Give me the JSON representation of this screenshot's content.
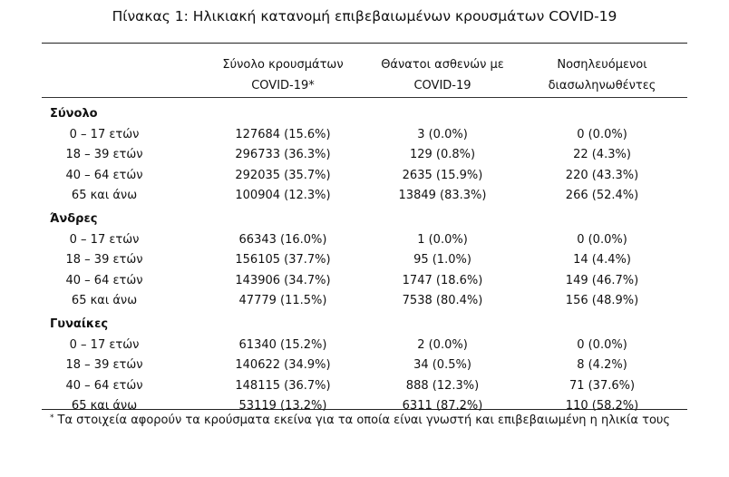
{
  "title": "Πίνακας 1: Ηλικιακή κατανομή επιβεβαιωμένων κρουσμάτων COVID-19",
  "columns": [
    "Σύνολο κρουσμάτων\nCOVID-19*",
    "Θάνατοι ασθενών με\nCOVID-19",
    "Νοσηλευόμενοι\nδιασωληνωθέντες"
  ],
  "sections": [
    {
      "label": "Σύνολο",
      "rows": [
        {
          "age": "0 – 17 ετών",
          "cases": "127684 (15.6%)",
          "deaths": "3 (0.0%)",
          "intubated": "0 (0.0%)"
        },
        {
          "age": "18 – 39 ετών",
          "cases": "296733 (36.3%)",
          "deaths": "129 (0.8%)",
          "intubated": "22 (4.3%)"
        },
        {
          "age": "40 – 64 ετών",
          "cases": "292035 (35.7%)",
          "deaths": "2635 (15.9%)",
          "intubated": "220 (43.3%)"
        },
        {
          "age": "65 και άνω",
          "cases": "100904 (12.3%)",
          "deaths": "13849 (83.3%)",
          "intubated": "266 (52.4%)"
        }
      ]
    },
    {
      "label": "Άνδρες",
      "rows": [
        {
          "age": "0 – 17 ετών",
          "cases": "66343 (16.0%)",
          "deaths": "1 (0.0%)",
          "intubated": "0 (0.0%)"
        },
        {
          "age": "18 – 39 ετών",
          "cases": "156105 (37.7%)",
          "deaths": "95 (1.0%)",
          "intubated": "14 (4.4%)"
        },
        {
          "age": "40 – 64 ετών",
          "cases": "143906 (34.7%)",
          "deaths": "1747 (18.6%)",
          "intubated": "149 (46.7%)"
        },
        {
          "age": "65 και άνω",
          "cases": "47779 (11.5%)",
          "deaths": "7538 (80.4%)",
          "intubated": "156 (48.9%)"
        }
      ]
    },
    {
      "label": "Γυναίκες",
      "rows": [
        {
          "age": "0 – 17 ετών",
          "cases": "61340 (15.2%)",
          "deaths": "2 (0.0%)",
          "intubated": "0 (0.0%)"
        },
        {
          "age": "18 – 39 ετών",
          "cases": "140622 (34.9%)",
          "deaths": "34 (0.5%)",
          "intubated": "8 (4.2%)"
        },
        {
          "age": "40 – 64 ετών",
          "cases": "148115 (36.7%)",
          "deaths": "888 (12.3%)",
          "intubated": "71 (37.6%)"
        },
        {
          "age": "65 και άνω",
          "cases": "53119 (13.2%)",
          "deaths": "6311 (87.2%)",
          "intubated": "110 (58.2%)"
        }
      ]
    }
  ],
  "footnote": {
    "marker": "*",
    "text": "Τα στοιχεία αφορούν τα κρούσματα εκείνα για τα οποία είναι γνωστή και επιβεβαιωμένη η ηλικία τους"
  }
}
